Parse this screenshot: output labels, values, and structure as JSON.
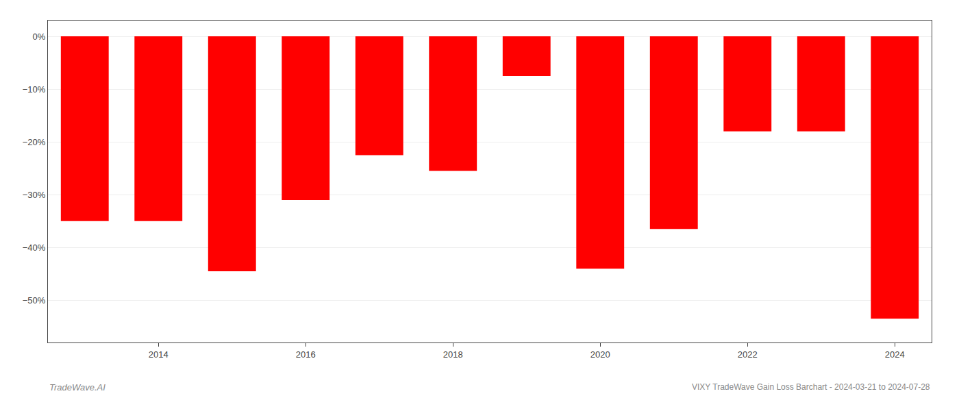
{
  "chart_data": {
    "type": "bar",
    "categories": [
      null,
      "2014",
      null,
      "2016",
      null,
      "2018",
      null,
      "2020",
      null,
      "2022",
      null,
      "2024"
    ],
    "values": [
      -35.0,
      -35.0,
      -44.5,
      -31.0,
      -22.5,
      -25.5,
      -7.5,
      -44.0,
      -36.5,
      -18.0,
      -18.0,
      -53.5
    ],
    "color": "#ff0000",
    "ylim": [
      -58,
      3
    ],
    "yticks": [
      {
        "value": 0,
        "label": "0%"
      },
      {
        "value": -10,
        "label": "−10%"
      },
      {
        "value": -20,
        "label": "−20%"
      },
      {
        "value": -30,
        "label": "−30%"
      },
      {
        "value": -40,
        "label": "−40%"
      },
      {
        "value": -50,
        "label": "−50%"
      }
    ],
    "grid": true,
    "annotations": [
      "TradeWave.AI",
      "VIXY TradeWave Gain Loss Barchart - 2024-03-21 to 2024-07-28"
    ]
  }
}
